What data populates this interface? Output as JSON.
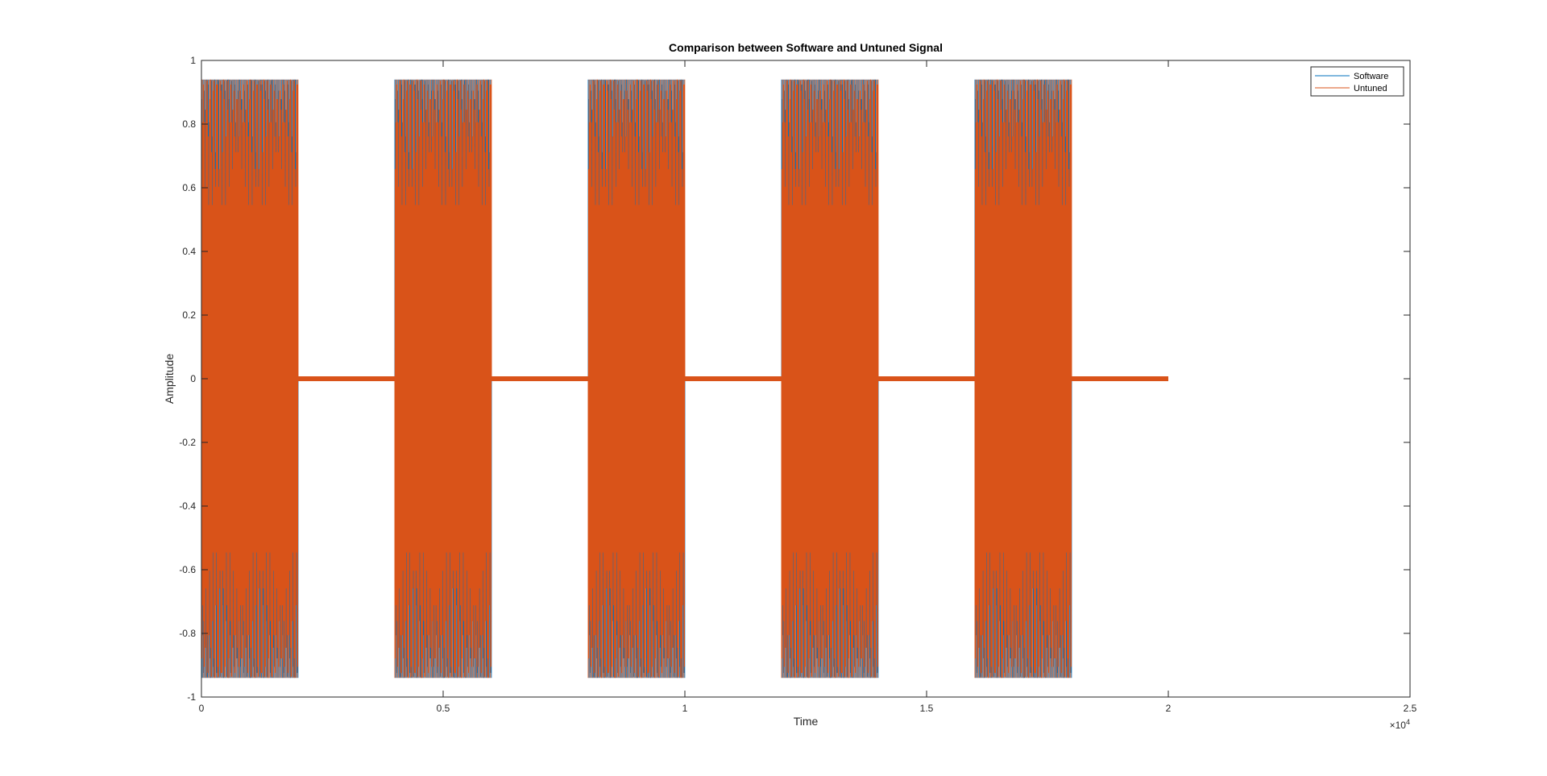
{
  "chart_data": {
    "type": "line",
    "title": "Comparison between Software and Untuned Signal",
    "xlabel": "Time",
    "ylabel": "Amplitude",
    "x_exponent_label": "×10",
    "x_exponent_power": "4",
    "xlim": [
      0,
      25000
    ],
    "ylim": [
      -1,
      1
    ],
    "x_ticks": [
      0,
      5000,
      10000,
      15000,
      20000,
      25000
    ],
    "x_tick_labels": [
      "0",
      "0.5",
      "1",
      "1.5",
      "2",
      "2.5"
    ],
    "y_ticks": [
      -1,
      -0.8,
      -0.6,
      -0.4,
      -0.2,
      0,
      0.2,
      0.4,
      0.6,
      0.8,
      1
    ],
    "y_tick_labels": [
      "-1",
      "-0.8",
      "-0.6",
      "-0.4",
      "-0.2",
      "0",
      "0.2",
      "0.4",
      "0.6",
      "0.8",
      "1"
    ],
    "grid": false,
    "legend_position": "top-right",
    "signal_length": 20000,
    "bursts": [
      {
        "start": 0,
        "end": 2000
      },
      {
        "start": 4000,
        "end": 6000
      },
      {
        "start": 8000,
        "end": 10000
      },
      {
        "start": 12000,
        "end": 14000
      },
      {
        "start": 16000,
        "end": 18000
      }
    ],
    "peak_amplitude": 0.94,
    "series": [
      {
        "name": "Software",
        "color": "#0072BD"
      },
      {
        "name": "Untuned",
        "color": "#D95319"
      }
    ]
  }
}
